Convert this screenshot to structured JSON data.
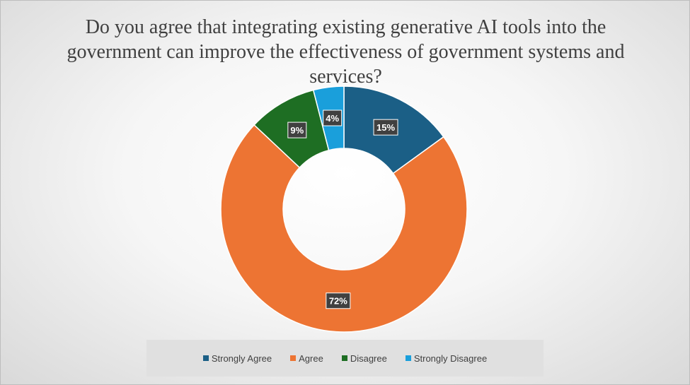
{
  "chart_data": {
    "type": "pie",
    "title": "Do you agree that integrating existing generative AI tools into the government can improve the effectiveness of government systems and services?",
    "categories": [
      "Strongly Agree",
      "Agree",
      "Disagree",
      "Strongly Disagree"
    ],
    "values": [
      15,
      72,
      9,
      4
    ],
    "data_labels": [
      "15%",
      "72%",
      "9%",
      "4%"
    ],
    "colors": [
      "#1b5f86",
      "#ed7433",
      "#1e6e23",
      "#1a9fdb"
    ],
    "donut": true,
    "legend_position": "bottom"
  }
}
